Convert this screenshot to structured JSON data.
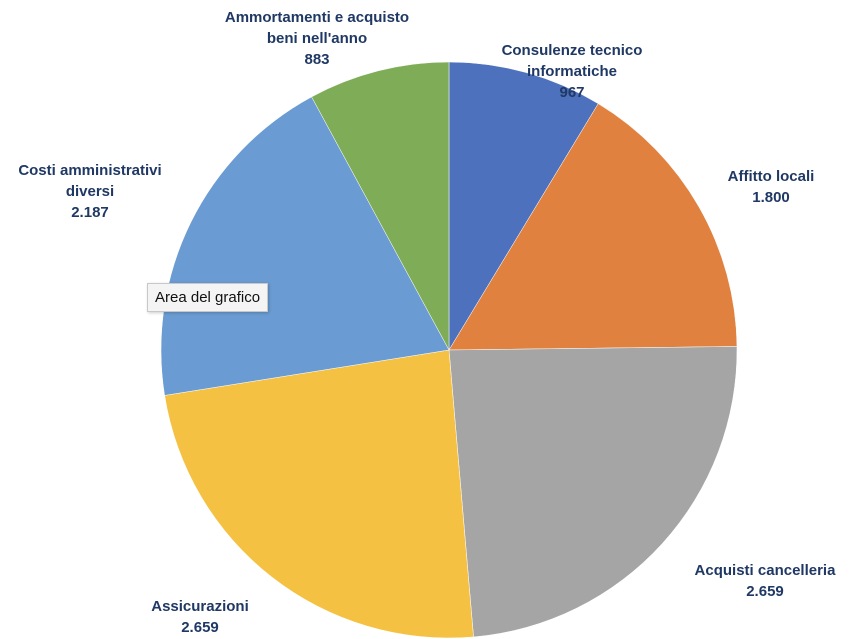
{
  "chart_data": {
    "type": "pie",
    "categories": [
      "Consulenze tecnico informatiche",
      "Affitto locali",
      "Acquisti cancelleria",
      "Assicurazioni",
      "Costi amministrativi diversi",
      "Ammortamenti e acquisto beni nell'anno"
    ],
    "values": [
      967,
      1800,
      2659,
      2659,
      2187,
      883
    ],
    "value_labels": [
      "967",
      "1.800",
      "2.659",
      "2.659",
      "2.187",
      "883"
    ],
    "colors": [
      "#4e71be",
      "#e0813f",
      "#a5a5a5",
      "#f5c142",
      "#6a9bd2",
      "#7fad57"
    ],
    "tooltip": "Area del grafico"
  }
}
